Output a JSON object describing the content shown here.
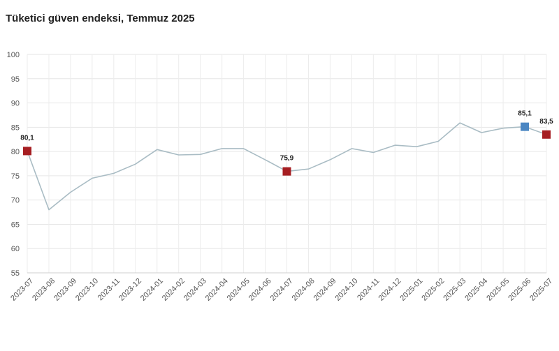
{
  "header": {
    "title": "Tüketici güven endeksi, Temmuz 2025"
  },
  "chart_data": {
    "type": "line",
    "title": "Tüketici güven endeksi, Temmuz 2025",
    "xlabel": "",
    "ylabel": "",
    "ylim": [
      55,
      100
    ],
    "yticks": [
      55,
      60,
      65,
      70,
      75,
      80,
      85,
      90,
      95,
      100
    ],
    "grid": true,
    "x": [
      "2023-07",
      "2023-08",
      "2023-09",
      "2023-10",
      "2023-11",
      "2023-12",
      "2024-01",
      "2024-02",
      "2024-03",
      "2024-04",
      "2024-05",
      "2024-06",
      "2024-07",
      "2024-08",
      "2024-09",
      "2024-10",
      "2024-11",
      "2024-12",
      "2025-01",
      "2025-02",
      "2025-03",
      "2025-04",
      "2025-05",
      "2025-06",
      "2025-07"
    ],
    "series": [
      {
        "values": [
          80.1,
          68.0,
          71.6,
          74.5,
          75.5,
          77.4,
          80.4,
          79.3,
          79.4,
          80.6,
          80.6,
          78.3,
          75.9,
          76.4,
          78.3,
          80.6,
          79.8,
          81.3,
          81.0,
          82.1,
          85.9,
          83.9,
          84.8,
          85.1,
          83.5
        ]
      }
    ],
    "line_color": "#a9bcc4",
    "highlights": [
      {
        "index": 0,
        "label": "80,1",
        "color": "#a61e22"
      },
      {
        "index": 12,
        "label": "75,9",
        "color": "#a61e22"
      },
      {
        "index": 23,
        "label": "85,1",
        "color": "#4a86c2"
      },
      {
        "index": 24,
        "label": "83,5",
        "color": "#a61e22"
      }
    ]
  }
}
